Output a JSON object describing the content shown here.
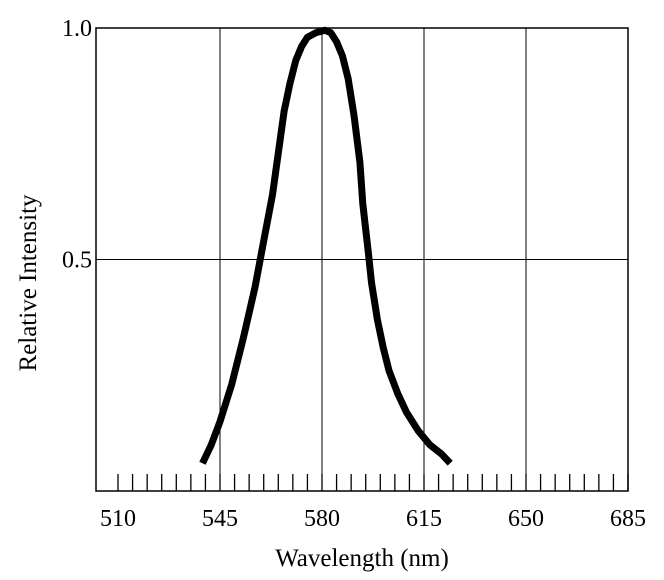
{
  "chart_data": {
    "type": "line",
    "xlabel": "Wavelength (nm)",
    "ylabel": "Relative Intensity",
    "xlim": [
      510,
      685
    ],
    "ylim": [
      0,
      1.0
    ],
    "x_ticks": [
      "510",
      "545",
      "580",
      "615",
      "650",
      "685"
    ],
    "y_ticks": [
      "0.5",
      "1.0"
    ],
    "y_tick_values": [
      0.5,
      1.0
    ],
    "minor_x_step": 5,
    "grid": true,
    "line_color": "#000000",
    "series": [
      {
        "x": [
          539,
          542,
          545,
          549,
          553,
          557,
          560,
          563,
          565,
          567,
          569,
          571,
          573,
          575,
          578,
          581,
          583,
          585,
          587,
          589,
          591,
          593,
          594,
          596,
          597,
          599,
          601,
          603,
          606,
          609,
          613,
          617,
          621,
          624
        ],
        "y": [
          0.06,
          0.1,
          0.15,
          0.23,
          0.33,
          0.44,
          0.54,
          0.64,
          0.73,
          0.82,
          0.88,
          0.93,
          0.96,
          0.98,
          0.99,
          0.995,
          0.99,
          0.97,
          0.94,
          0.89,
          0.81,
          0.71,
          0.62,
          0.51,
          0.45,
          0.37,
          0.31,
          0.26,
          0.21,
          0.17,
          0.13,
          0.1,
          0.08,
          0.06
        ]
      }
    ]
  }
}
